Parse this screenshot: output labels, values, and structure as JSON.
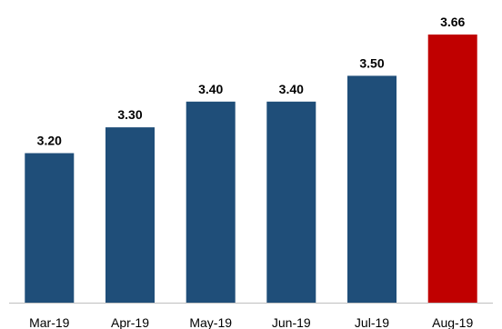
{
  "chart_data": {
    "type": "bar",
    "categories": [
      "Mar-19",
      "Apr-19",
      "May-19",
      "Jun-19",
      "Jul-19",
      "Aug-19"
    ],
    "values": [
      3.2,
      3.3,
      3.4,
      3.4,
      3.5,
      3.66
    ],
    "value_labels": [
      "3.20",
      "3.30",
      "3.40",
      "3.40",
      "3.50",
      "3.66"
    ],
    "colors": [
      "#1f4e79",
      "#1f4e79",
      "#1f4e79",
      "#1f4e79",
      "#1f4e79",
      "#c00000"
    ],
    "axis_color": "#bfbfbf",
    "ylim": [
      2.62,
      3.66
    ],
    "grid": false,
    "legend": "none"
  }
}
